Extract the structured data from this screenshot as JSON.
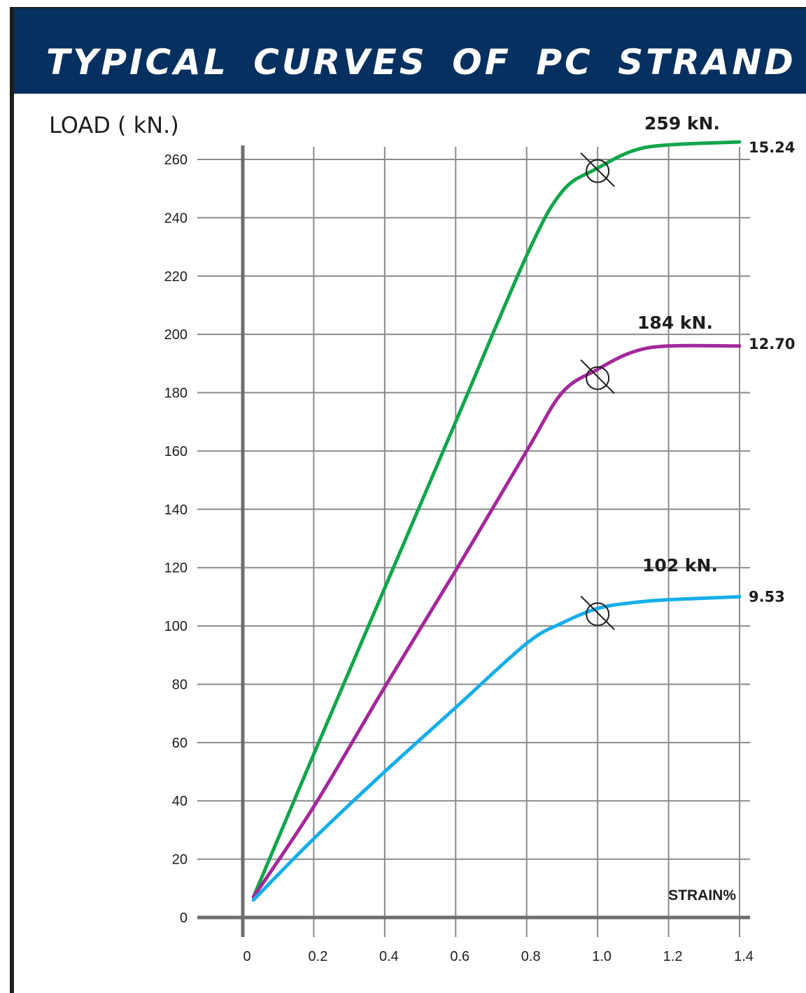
{
  "banner": {
    "title": "TYPICAL CURVES OF PC STRAND"
  },
  "chart_data": {
    "type": "line",
    "title": "TYPICAL CURVES OF PC STRAND",
    "ylabel": "LOAD ( kN.)",
    "xlabel": "STRAIN%",
    "xlim": [
      0,
      1.4
    ],
    "ylim": [
      0,
      260
    ],
    "xticks": [
      "0",
      "0.2",
      "0.4",
      "0.6",
      "0.8",
      "1.0",
      "1.2",
      "1.4"
    ],
    "yticks": [
      "0",
      "20",
      "40",
      "60",
      "80",
      "100",
      "120",
      "140",
      "160",
      "180",
      "200",
      "220",
      "240",
      "260"
    ],
    "grid": true,
    "series": [
      {
        "name": "15.24",
        "peak_label": "259 kN.",
        "color": "#10a64a",
        "points": [
          [
            0.03,
            7
          ],
          [
            0.2,
            56
          ],
          [
            0.4,
            113
          ],
          [
            0.6,
            170
          ],
          [
            0.8,
            227
          ],
          [
            0.9,
            249
          ],
          [
            1.0,
            257
          ],
          [
            1.1,
            263
          ],
          [
            1.2,
            265
          ],
          [
            1.4,
            266
          ]
        ],
        "marker": [
          1.0,
          256
        ]
      },
      {
        "name": "12.70",
        "peak_label": "184 kN.",
        "color": "#a3289b",
        "points": [
          [
            0.03,
            7
          ],
          [
            0.2,
            38
          ],
          [
            0.4,
            79
          ],
          [
            0.6,
            119
          ],
          [
            0.8,
            160
          ],
          [
            0.9,
            180
          ],
          [
            1.0,
            188
          ],
          [
            1.1,
            194
          ],
          [
            1.2,
            196
          ],
          [
            1.4,
            196
          ]
        ],
        "marker": [
          1.0,
          185
        ]
      },
      {
        "name": "9.53",
        "peak_label": "102 kN.",
        "color": "#15aeea",
        "points": [
          [
            0.03,
            6
          ],
          [
            0.2,
            27
          ],
          [
            0.4,
            50
          ],
          [
            0.6,
            72
          ],
          [
            0.8,
            94
          ],
          [
            0.9,
            101
          ],
          [
            1.0,
            106
          ],
          [
            1.1,
            108
          ],
          [
            1.2,
            109
          ],
          [
            1.4,
            110
          ]
        ],
        "marker": [
          1.0,
          104
        ]
      }
    ]
  }
}
